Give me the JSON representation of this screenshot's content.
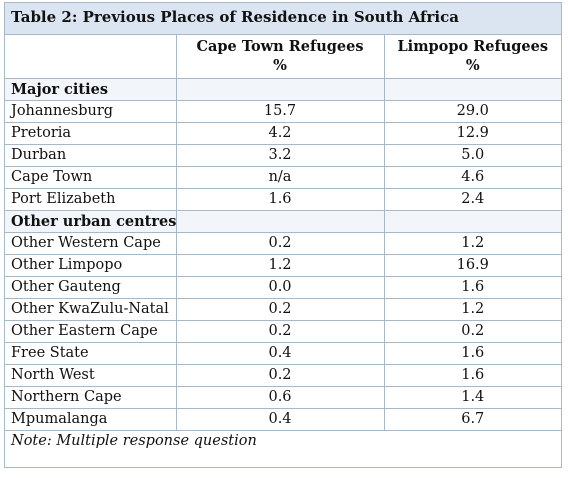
{
  "table": {
    "caption": "Table 2: Previous Places of Residence in South Africa",
    "header": {
      "col2_line1": "Cape Town Refugees",
      "col2_line2": "%",
      "col3_line1": "Limpopo Refugees",
      "col3_line2": "%"
    },
    "sections": [
      {
        "title": "Major cities",
        "rows": [
          {
            "place": "Johannesburg",
            "cape_town": "15.7",
            "limpopo": "29.0"
          },
          {
            "place": "Pretoria",
            "cape_town": "4.2",
            "limpopo": "12.9"
          },
          {
            "place": "Durban",
            "cape_town": "3.2",
            "limpopo": "5.0"
          },
          {
            "place": "Cape Town",
            "cape_town": "n/a",
            "limpopo": "4.6"
          },
          {
            "place": "Port Elizabeth",
            "cape_town": "1.6",
            "limpopo": "2.4"
          }
        ]
      },
      {
        "title": "Other urban centres",
        "rows": [
          {
            "place": "Other Western Cape",
            "cape_town": "0.2",
            "limpopo": "1.2"
          },
          {
            "place": "Other Limpopo",
            "cape_town": "1.2",
            "limpopo": "16.9"
          },
          {
            "place": "Other Gauteng",
            "cape_town": "0.0",
            "limpopo": "1.6"
          },
          {
            "place": "Other KwaZulu-Natal",
            "cape_town": "0.2",
            "limpopo": "1.2"
          },
          {
            "place": "Other Eastern Cape",
            "cape_town": "0.2",
            "limpopo": "0.2"
          },
          {
            "place": "Free State",
            "cape_town": "0.4",
            "limpopo": "1.6"
          },
          {
            "place": "North West",
            "cape_town": "0.2",
            "limpopo": "1.6"
          },
          {
            "place": "Northern Cape",
            "cape_town": "0.6",
            "limpopo": "1.4"
          },
          {
            "place": "Mpumalanga",
            "cape_town": "0.4",
            "limpopo": "6.7"
          }
        ]
      }
    ],
    "note": "Note: Multiple response question"
  }
}
